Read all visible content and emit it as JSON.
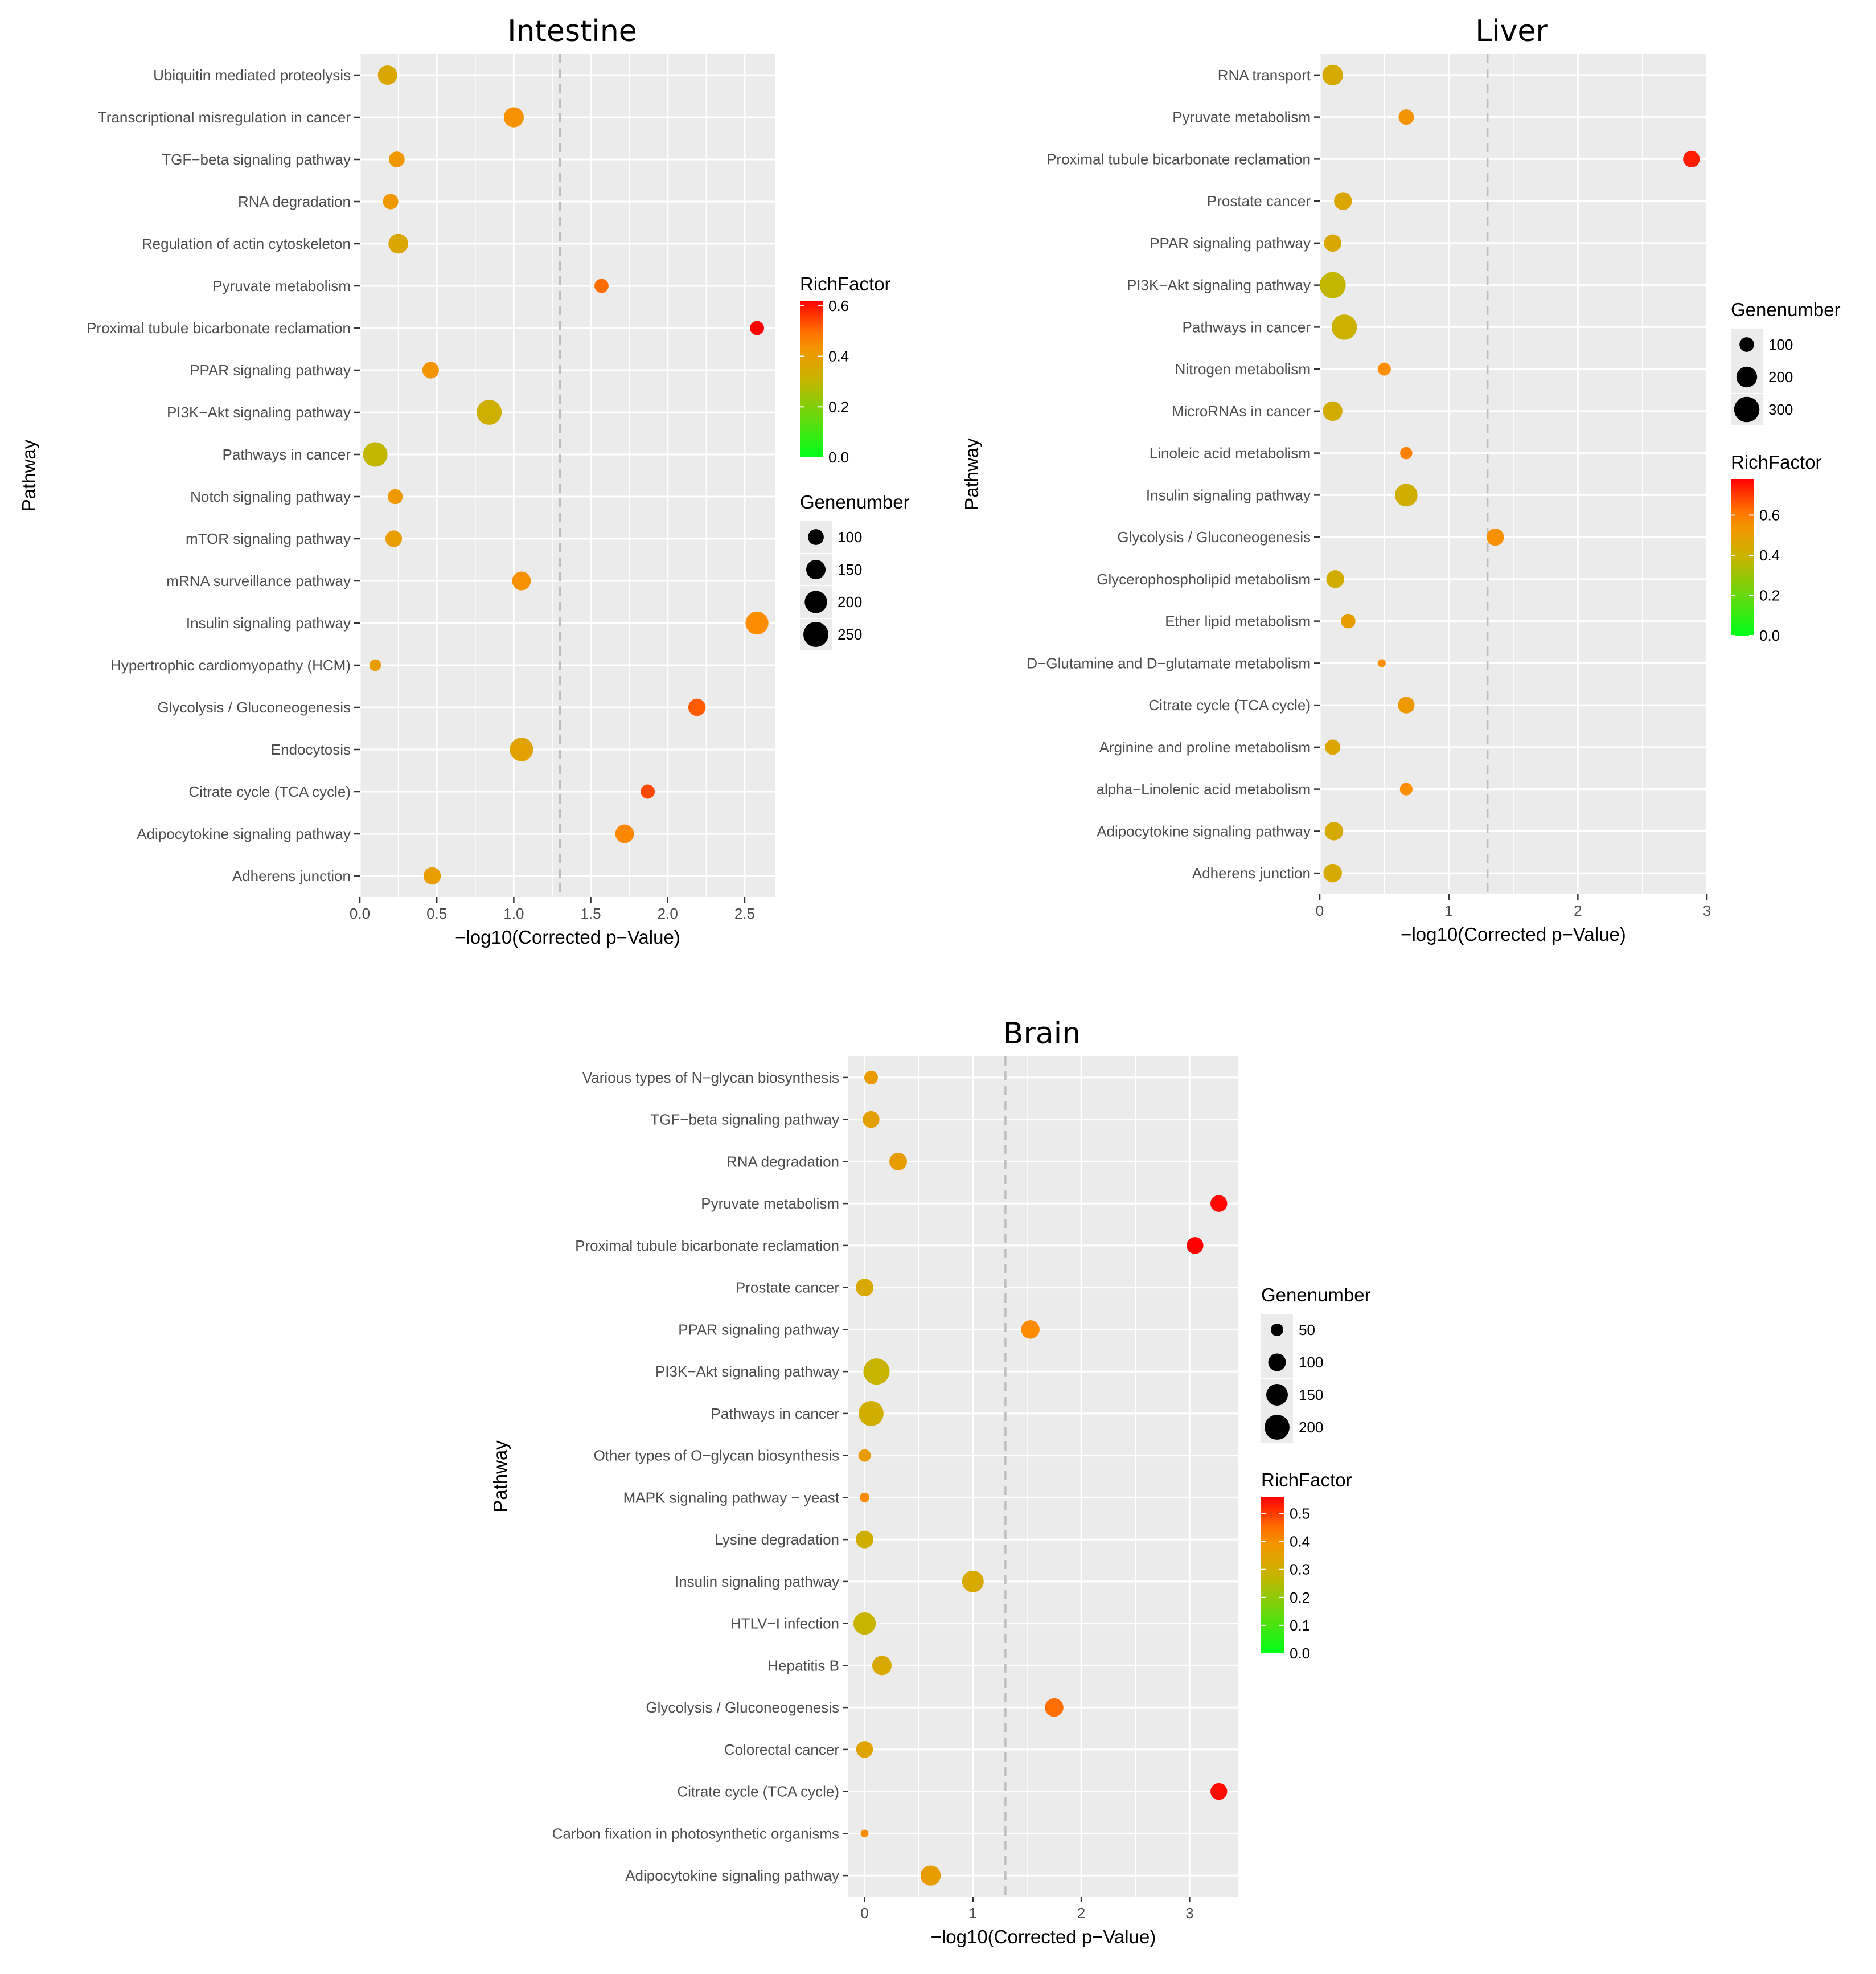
{
  "chart_data": [
    {
      "type": "scatter",
      "title": "Intestine",
      "xlabel": "−log10(Corrected p−Value)",
      "ylabel": "Pathway",
      "xlim": [
        0,
        2.7
      ],
      "xticks": [
        "0.0",
        "0.5",
        "1.0",
        "1.5",
        "2.0",
        "2.5"
      ],
      "threshold": 1.3,
      "categories": [
        "Ubiquitin mediated proteolysis",
        "Transcriptional misregulation in cancer",
        "TGF−beta signaling pathway",
        "RNA degradation",
        "Regulation of actin cytoskeleton",
        "Pyruvate metabolism",
        "Proximal tubule bicarbonate reclamation",
        "PPAR signaling pathway",
        "PI3K−Akt signaling pathway",
        "Pathways in cancer",
        "Notch signaling pathway",
        "mTOR signaling pathway",
        "mRNA surveillance pathway",
        "Insulin signaling pathway",
        "Hypertrophic cardiomyopathy (HCM)",
        "Glycolysis / Gluconeogenesis",
        "Endocytosis",
        "Citrate cycle (TCA cycle)",
        "Adipocytokine signaling pathway",
        "Adherens junction"
      ],
      "x": [
        0.18,
        1.0,
        0.24,
        0.2,
        0.25,
        1.57,
        2.58,
        0.46,
        0.84,
        0.1,
        0.23,
        0.22,
        1.05,
        2.58,
        0.1,
        2.19,
        1.05,
        1.87,
        1.72,
        0.47
      ],
      "genenumber": [
        150,
        160,
        100,
        95,
        155,
        80,
        80,
        110,
        250,
        240,
        90,
        110,
        140,
        210,
        55,
        120,
        220,
        80,
        140,
        120
      ],
      "richfactor": [
        0.36,
        0.44,
        0.42,
        0.42,
        0.36,
        0.5,
        0.62,
        0.43,
        0.33,
        0.3,
        0.42,
        0.4,
        0.44,
        0.46,
        0.4,
        0.52,
        0.38,
        0.54,
        0.47,
        0.4
      ],
      "genenumber_legend": [
        100,
        150,
        200,
        250
      ],
      "richfactor_legend": [
        "0.0",
        "0.2",
        "0.4",
        "0.6"
      ],
      "richfactor_range": [
        0,
        0.62
      ]
    },
    {
      "type": "scatter",
      "title": "Liver",
      "xlabel": "−log10(Corrected p−Value)",
      "ylabel": "Pathway",
      "xlim": [
        0,
        3
      ],
      "xticks": [
        "0",
        "1",
        "2",
        "3"
      ],
      "threshold": 1.3,
      "categories": [
        "RNA transport",
        "Pyruvate metabolism",
        "Proximal tubule bicarbonate reclamation",
        "Prostate cancer",
        "PPAR signaling pathway",
        "PI3K−Akt signaling pathway",
        "Pathways in cancer",
        "Nitrogen metabolism",
        "MicroRNAs in cancer",
        "Linoleic acid metabolism",
        "Insulin signaling pathway",
        "Glycolysis / Gluconeogenesis",
        "Glycerophospholipid metabolism",
        "Ether lipid metabolism",
        "D−Glutamine and D−glutamate metabolism",
        "Citrate cycle (TCA cycle)",
        "Arginine and proline metabolism",
        "alpha−Linolenic acid metabolism",
        "Adipocytokine signaling pathway",
        "Adherens junction"
      ],
      "x": [
        0.1,
        0.67,
        2.88,
        0.18,
        0.1,
        0.1,
        0.19,
        0.5,
        0.1,
        0.67,
        0.67,
        1.36,
        0.12,
        0.22,
        0.48,
        0.67,
        0.1,
        0.67,
        0.11,
        0.1
      ],
      "genenumber": [
        200,
        110,
        130,
        150,
        140,
        320,
        300,
        80,
        180,
        70,
        240,
        140,
        150,
        100,
        30,
        130,
        110,
        75,
        160,
        160
      ],
      "richfactor": [
        0.44,
        0.54,
        0.74,
        0.46,
        0.45,
        0.38,
        0.4,
        0.58,
        0.43,
        0.6,
        0.42,
        0.56,
        0.43,
        0.5,
        0.58,
        0.52,
        0.46,
        0.58,
        0.44,
        0.44
      ],
      "genenumber_legend": [
        100,
        200,
        300
      ],
      "richfactor_legend": [
        "0.0",
        "0.2",
        "0.4",
        "0.6"
      ],
      "richfactor_range": [
        0,
        0.78
      ]
    },
    {
      "type": "scatter",
      "title": "Brain",
      "xlabel": "−log10(Corrected p−Value)",
      "ylabel": "Pathway",
      "xlim": [
        -0.15,
        3.45
      ],
      "xticks": [
        "0",
        "1",
        "2",
        "3"
      ],
      "threshold": 1.3,
      "categories": [
        "Various types of N−glycan biosynthesis",
        "TGF−beta signaling pathway",
        "RNA degradation",
        "Pyruvate metabolism",
        "Proximal tubule bicarbonate reclamation",
        "Prostate cancer",
        "PPAR signaling pathway",
        "PI3K−Akt signaling pathway",
        "Pathways in cancer",
        "Other types of O−glycan biosynthesis",
        "MAPK signaling pathway − yeast",
        "Lysine degradation",
        "Insulin signaling pathway",
        "HTLV−I infection",
        "Hepatitis B",
        "Glycolysis / Gluconeogenesis",
        "Colorectal cancer",
        "Citrate cycle (TCA cycle)",
        "Carbon fixation in photosynthetic organisms",
        "Adipocytokine signaling pathway"
      ],
      "x": [
        0.06,
        0.06,
        0.31,
        3.27,
        3.05,
        0.0,
        1.53,
        0.11,
        0.06,
        0.0,
        0.0,
        0.0,
        1.0,
        0.0,
        0.16,
        1.75,
        0.0,
        3.27,
        0.0,
        0.61
      ],
      "genenumber": [
        60,
        90,
        100,
        90,
        90,
        100,
        110,
        220,
        200,
        50,
        30,
        100,
        150,
        160,
        120,
        110,
        90,
        90,
        20,
        130
      ],
      "richfactor": [
        0.37,
        0.35,
        0.36,
        0.55,
        0.56,
        0.32,
        0.42,
        0.28,
        0.3,
        0.36,
        0.42,
        0.3,
        0.32,
        0.28,
        0.32,
        0.45,
        0.34,
        0.55,
        0.42,
        0.36
      ],
      "genenumber_legend": [
        50,
        100,
        150,
        200
      ],
      "richfactor_legend": [
        "0.0",
        "0.1",
        "0.2",
        "0.3",
        "0.4",
        "0.5"
      ],
      "richfactor_range": [
        0,
        0.56
      ]
    }
  ],
  "legend_titles": {
    "genenumber": "Genenumber",
    "richfactor": "RichFactor"
  },
  "colors": {
    "panel_bg": "#ebebeb",
    "grid": "#ffffff",
    "dashed_line": "#bdbdbd",
    "low": "#00ff1a",
    "mid": "#c8b400",
    "high": "#ff0000",
    "dot": "#000000"
  }
}
